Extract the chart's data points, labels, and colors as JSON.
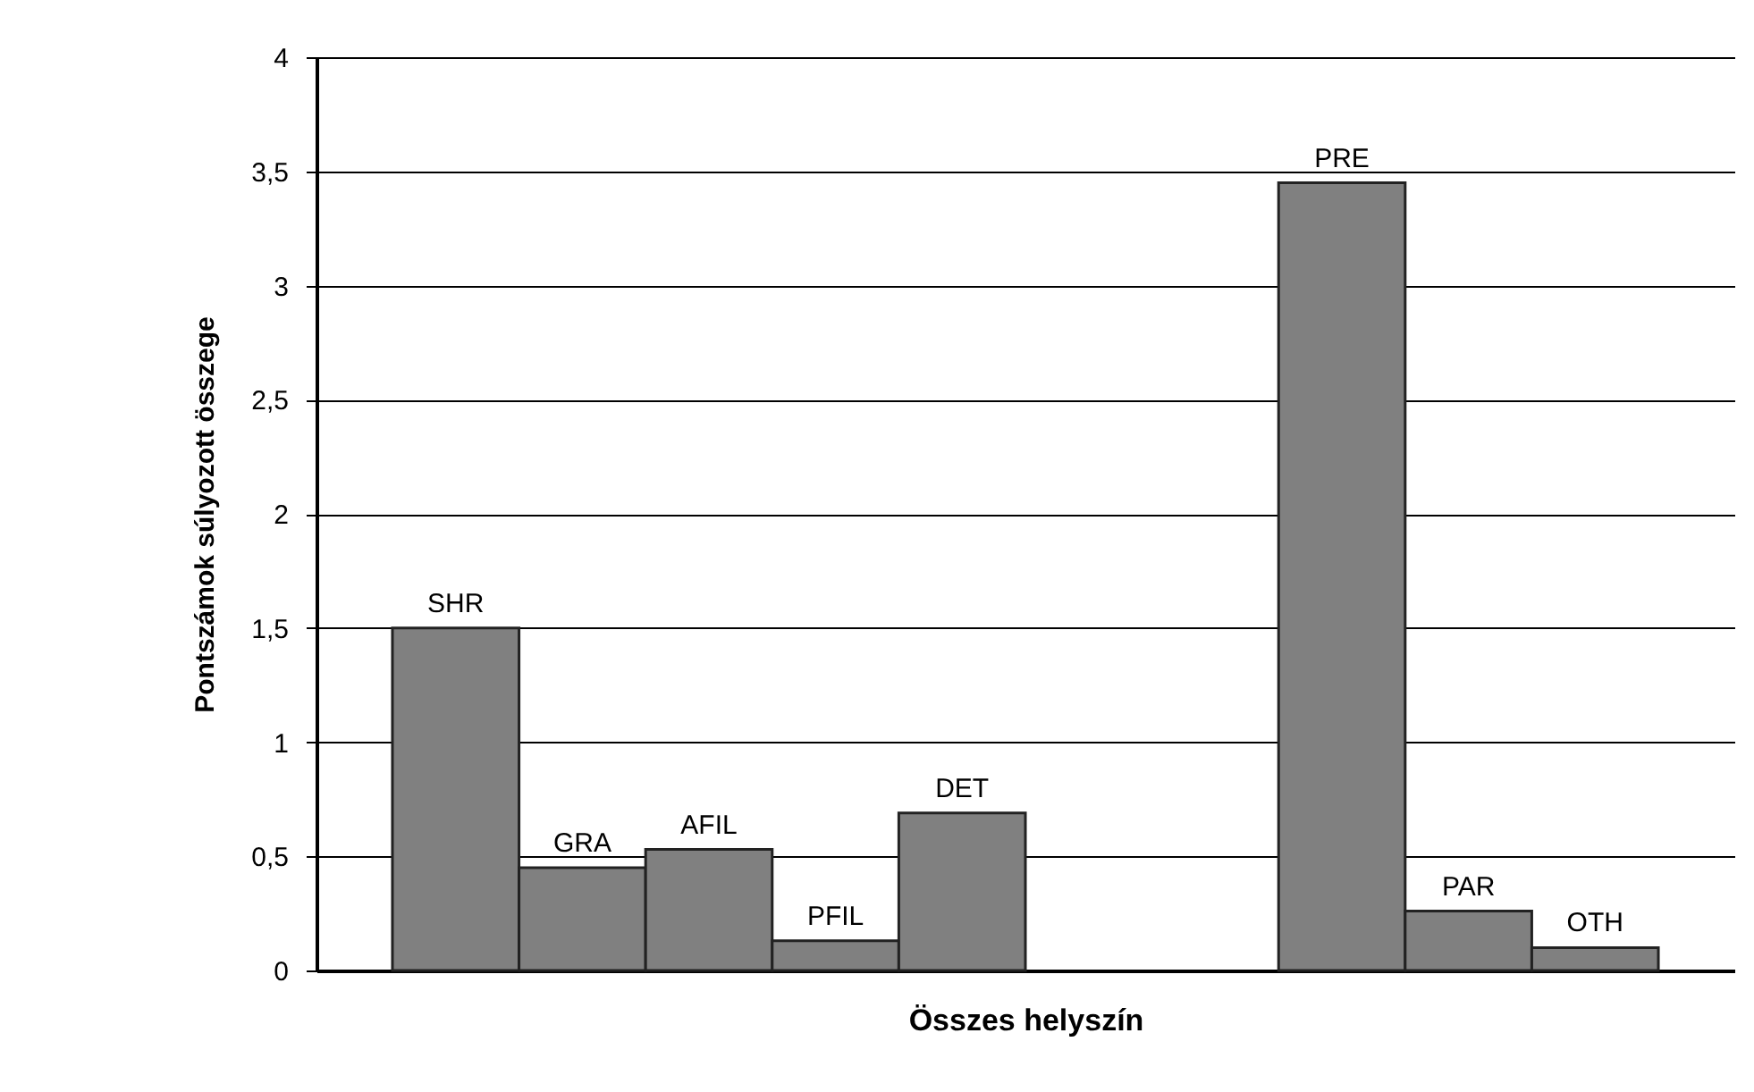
{
  "chart_data": {
    "type": "bar",
    "xlabel": "Összes helyszín",
    "ylabel": "Pontszámok súlyozott összege",
    "categories": [
      "SHR",
      "GRA",
      "AFIL",
      "PFIL",
      "DET",
      null,
      null,
      "PRE",
      "PAR",
      "OTH"
    ],
    "values": [
      1.5,
      0.45,
      0.53,
      0.13,
      0.69,
      null,
      null,
      3.45,
      0.26,
      0.1
    ],
    "color": "#808080",
    "ylim": [
      0,
      4
    ],
    "yticks": [
      0,
      {
        "value": 0.5,
        "label": "0,5"
      },
      1,
      {
        "value": 1.5,
        "label": "1,5"
      },
      2,
      {
        "value": 2.5,
        "label": "2,5"
      },
      3,
      {
        "value": 3.5,
        "label": "3,5"
      },
      4
    ],
    "grid": "y",
    "tick_labels": "y"
  }
}
